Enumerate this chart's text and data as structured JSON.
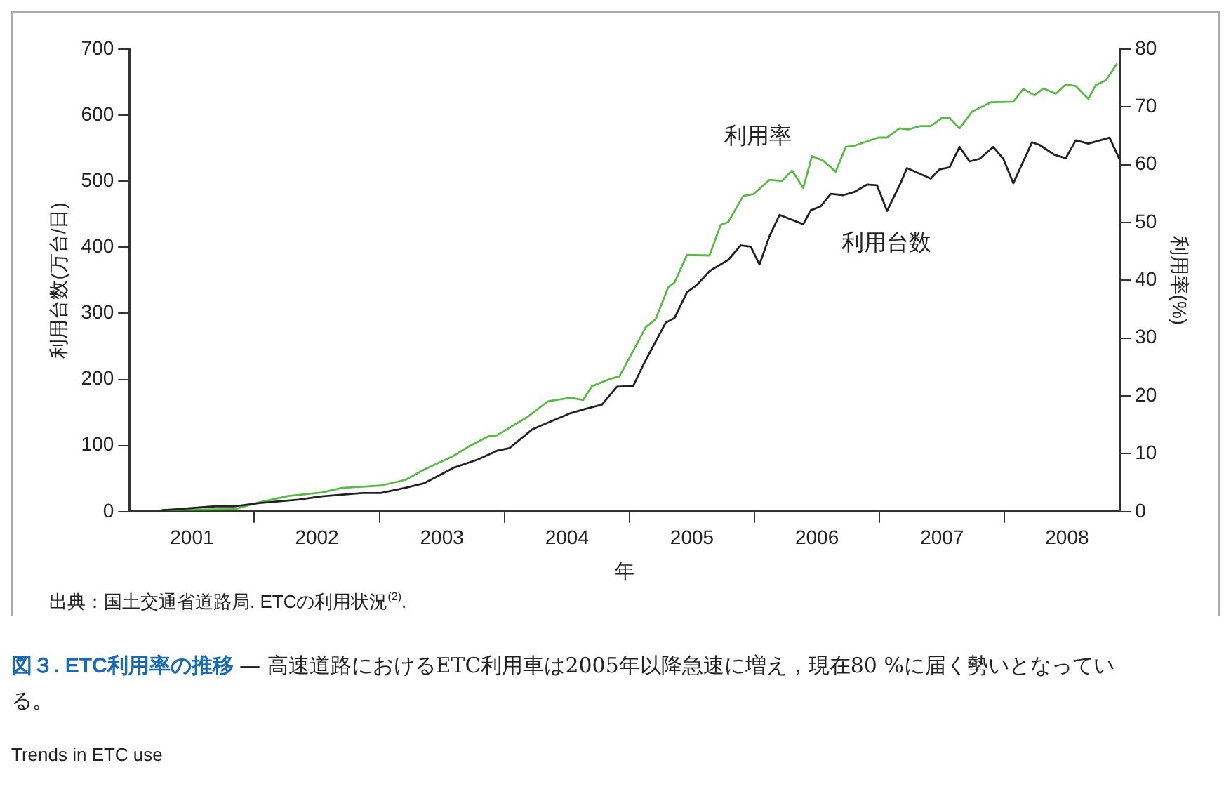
{
  "chart_data": {
    "type": "line",
    "title": "図３. ETC利用率の推移",
    "subtitle": "— 高速道路におけるETC利用車は2005年以降急速に増え，現在80 %に届く勢いとなっている。",
    "xlabel": "年",
    "ylabel": "利用台数(万台/日)",
    "y2label": "利用率(%)",
    "annotations": [
      "出典：国土交通省道路局. ETCの利用状況$^{(2)}$.",
      "Trends in ETC use"
    ],
    "xlim": [
      2001,
      2008.92
    ],
    "xticks": [
      {
        "value": 2001.5,
        "label": "2001"
      },
      {
        "value": 2002,
        "label": null
      },
      {
        "value": 2002.5,
        "label": "2002"
      },
      {
        "value": 2003,
        "label": null
      },
      {
        "value": 2003.5,
        "label": "2003"
      },
      {
        "value": 2004,
        "label": null
      },
      {
        "value": 2004.5,
        "label": "2004"
      },
      {
        "value": 2005,
        "label": null
      },
      {
        "value": 2005.5,
        "label": "2005"
      },
      {
        "value": 2006,
        "label": null
      },
      {
        "value": 2006.5,
        "label": "2006"
      },
      {
        "value": 2007,
        "label": null
      },
      {
        "value": 2007.5,
        "label": "2007"
      },
      {
        "value": 2008,
        "label": null
      },
      {
        "value": 2008.5,
        "label": "2008"
      }
    ],
    "ylim": [
      0,
      700
    ],
    "yticks": [
      0,
      100,
      200,
      300,
      400,
      500,
      600,
      700
    ],
    "y2lim": [
      0,
      80
    ],
    "y2ticks": [
      0,
      10,
      20,
      30,
      40,
      50,
      60,
      70,
      80
    ],
    "grid": false,
    "legend": false,
    "marker": "none",
    "line_style": "solid",
    "series": [
      {
        "name": "利用台数",
        "color": "#222222",
        "x": [
          2001.26,
          2001.69,
          2001.84,
          2002.04,
          2002.35,
          2002.54,
          2002.86,
          2003.01,
          2003.21,
          2003.36,
          2003.59,
          2003.79,
          2003.94,
          2004.04,
          2004.22,
          2004.29,
          2004.53,
          2004.64,
          2004.78,
          2004.9,
          2005.03,
          2005.11,
          2005.29,
          2005.36,
          2005.46,
          2005.54,
          2005.64,
          2005.79,
          2005.89,
          2005.97,
          2006.04,
          2006.12,
          2006.2,
          2006.39,
          2006.45,
          2006.53,
          2006.61,
          2006.71,
          2006.8,
          2006.9,
          2006.98,
          2007.06,
          2007.17,
          2007.22,
          2007.41,
          2007.48,
          2007.56,
          2007.64,
          2007.72,
          2007.8,
          2007.91,
          2007.99,
          2008.07,
          2008.22,
          2008.28,
          2008.4,
          2008.49,
          2008.57,
          2008.67,
          2008.84,
          2008.92
        ],
        "values": [
          2,
          8,
          8,
          13,
          18,
          23,
          28,
          28,
          36,
          43,
          66,
          79,
          92,
          96,
          124,
          130,
          149,
          155,
          162,
          189,
          190,
          222,
          286,
          293,
          332,
          343,
          364,
          381,
          403,
          401,
          374,
          417,
          449,
          435,
          456,
          462,
          481,
          479,
          484,
          495,
          494,
          455,
          498,
          520,
          504,
          518,
          521,
          552,
          530,
          534,
          552,
          534,
          497,
          559,
          555,
          540,
          535,
          562,
          557,
          566,
          533
        ]
      },
      {
        "name": "利用率",
        "color": "#5ab947",
        "axis": "y2",
        "x": [
          2001.26,
          2001.84,
          2002.04,
          2002.27,
          2002.54,
          2002.7,
          2003.01,
          2003.21,
          2003.36,
          2003.59,
          2003.71,
          2003.87,
          2003.94,
          2004.18,
          2004.35,
          2004.53,
          2004.63,
          2004.7,
          2004.84,
          2004.92,
          2005.03,
          2005.13,
          2005.21,
          2005.31,
          2005.36,
          2005.46,
          2005.64,
          2005.73,
          2005.79,
          2005.91,
          2005.99,
          2006.12,
          2006.22,
          2006.3,
          2006.39,
          2006.46,
          2006.55,
          2006.65,
          2006.73,
          2006.8,
          2006.99,
          2007.06,
          2007.16,
          2007.23,
          2007.33,
          2007.41,
          2007.5,
          2007.56,
          2007.64,
          2007.74,
          2007.89,
          2008.07,
          2008.15,
          2008.24,
          2008.31,
          2008.41,
          2008.49,
          2008.57,
          2008.67,
          2008.73,
          2008.81,
          2008.9
        ],
        "values": [
          0.3,
          0.4,
          1.6,
          2.7,
          3.3,
          4.1,
          4.5,
          5.5,
          7.3,
          9.6,
          11.2,
          13.0,
          13.2,
          16.3,
          19.1,
          19.7,
          19.3,
          21.7,
          22.9,
          23.4,
          27.8,
          31.9,
          33.3,
          38.8,
          39.6,
          44.4,
          44.3,
          49.6,
          50.1,
          54.6,
          54.9,
          57.4,
          57.2,
          59.0,
          56.0,
          61.5,
          60.7,
          58.8,
          63.1,
          63.3,
          64.7,
          64.7,
          66.3,
          66.1,
          66.7,
          66.7,
          68.1,
          68.1,
          66.3,
          69.2,
          70.8,
          70.9,
          73.1,
          72.0,
          73.2,
          72.3,
          73.9,
          73.6,
          71.4,
          73.8,
          74.6,
          77.5
        ]
      }
    ]
  }
}
